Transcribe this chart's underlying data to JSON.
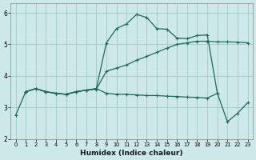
{
  "xlabel": "Humidex (Indice chaleur)",
  "xlim": [
    -0.5,
    23.5
  ],
  "ylim": [
    2.0,
    6.3
  ],
  "xticks": [
    0,
    1,
    2,
    3,
    4,
    5,
    6,
    7,
    8,
    9,
    10,
    11,
    12,
    13,
    14,
    15,
    16,
    17,
    18,
    19,
    20,
    21,
    22,
    23
  ],
  "yticks": [
    2,
    3,
    4,
    5,
    6
  ],
  "bg_color": "#cce8e8",
  "grid_color": "#a0c8c8",
  "line_color": "#1a6b5a",
  "line1_x": [
    0,
    1,
    2,
    3,
    4,
    5,
    6,
    7,
    8,
    9,
    10,
    11,
    12,
    13,
    14,
    15,
    16,
    17,
    18,
    19,
    20,
    21,
    22,
    23
  ],
  "line1_y": [
    2.75,
    3.5,
    3.6,
    3.5,
    3.45,
    3.42,
    3.5,
    3.55,
    3.58,
    4.15,
    4.25,
    4.35,
    4.5,
    4.62,
    4.75,
    4.88,
    5.0,
    5.05,
    5.1,
    5.1,
    5.08,
    5.08,
    5.07,
    5.05
  ],
  "line2_x": [
    1,
    2,
    3,
    4,
    5,
    6,
    7,
    8,
    9,
    10,
    11,
    12,
    13,
    14,
    15,
    16,
    17,
    18,
    19,
    20,
    21,
    22,
    23
  ],
  "line2_y": [
    3.5,
    3.6,
    3.5,
    3.45,
    3.42,
    3.5,
    3.55,
    3.6,
    5.05,
    5.5,
    5.65,
    5.95,
    5.85,
    5.5,
    5.48,
    5.2,
    5.18,
    5.28,
    5.3,
    3.45,
    2.55,
    2.82,
    3.15
  ],
  "line3_x": [
    1,
    2,
    3,
    4,
    5,
    6,
    7,
    8,
    9,
    10,
    11,
    12,
    13,
    14,
    15,
    16,
    17,
    18,
    19,
    20
  ],
  "line3_y": [
    3.5,
    3.6,
    3.5,
    3.45,
    3.42,
    3.5,
    3.55,
    3.6,
    3.45,
    3.42,
    3.42,
    3.4,
    3.38,
    3.38,
    3.36,
    3.35,
    3.33,
    3.32,
    3.3,
    3.45
  ],
  "marker_size": 3.5,
  "line_width": 0.9
}
